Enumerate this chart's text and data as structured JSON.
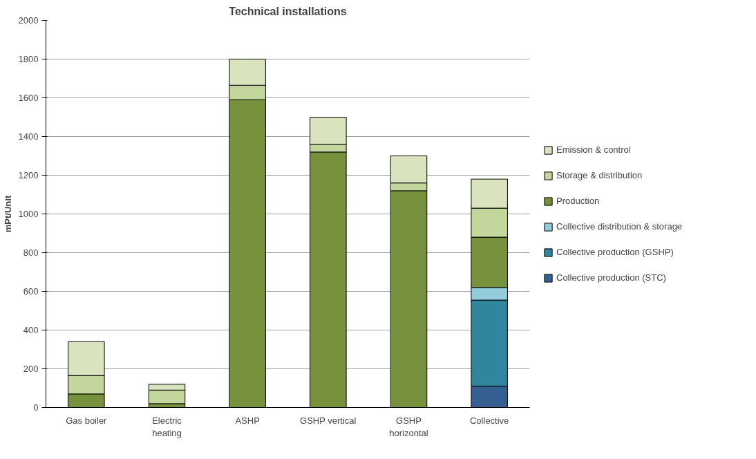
{
  "chart_data": {
    "type": "bar",
    "stacked": true,
    "title": "Technical installations",
    "ylabel": "mPt/Unit",
    "categories": [
      "Gas boiler",
      "Electric heating",
      "ASHP",
      "GSHP vertical",
      "GSHP horizontal",
      "Collective"
    ],
    "series": [
      {
        "name": "Collective production (STC)",
        "color": "#376092",
        "values": [
          null,
          null,
          null,
          null,
          null,
          110
        ]
      },
      {
        "name": "Collective production (GSHP)",
        "color": "#31859c",
        "values": [
          null,
          null,
          null,
          null,
          null,
          445
        ]
      },
      {
        "name": "Collective distribution & storage",
        "color": "#93cddd",
        "values": [
          null,
          null,
          null,
          null,
          null,
          65
        ]
      },
      {
        "name": "Production",
        "color": "#76923c",
        "values": [
          70,
          20,
          1590,
          1320,
          1120,
          260
        ]
      },
      {
        "name": "Storage & distribution",
        "color": "#c3d69b",
        "values": [
          95,
          70,
          75,
          40,
          40,
          150
        ]
      },
      {
        "name": "Emission & control",
        "color": "#d9e4bf",
        "values": [
          175,
          30,
          135,
          140,
          140,
          150
        ]
      }
    ],
    "ylim": [
      0,
      2000
    ],
    "yticks": [
      0,
      200,
      400,
      600,
      800,
      1000,
      1200,
      1400,
      1600,
      1800,
      2000
    ],
    "grid": "y",
    "legend": "right"
  }
}
